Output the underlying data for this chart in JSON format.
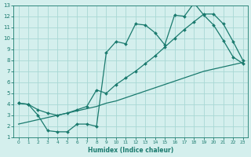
{
  "xlabel": "Humidex (Indice chaleur)",
  "bg_color": "#d4efed",
  "grid_color": "#a8d8d4",
  "line_color": "#1a7a6e",
  "xlim": [
    -0.5,
    23.5
  ],
  "ylim": [
    1,
    13
  ],
  "xticks": [
    0,
    1,
    2,
    3,
    4,
    5,
    6,
    7,
    8,
    9,
    10,
    11,
    12,
    13,
    14,
    15,
    16,
    17,
    18,
    19,
    20,
    21,
    22,
    23
  ],
  "yticks": [
    1,
    2,
    3,
    4,
    5,
    6,
    7,
    8,
    9,
    10,
    11,
    12,
    13
  ],
  "line1_x": [
    0,
    1,
    2,
    3,
    4,
    5,
    6,
    7,
    8,
    9,
    10,
    11,
    12,
    13,
    14,
    15,
    16,
    17,
    18,
    19,
    20,
    21,
    22,
    23
  ],
  "line1_y": [
    4.1,
    4.0,
    3.0,
    1.6,
    1.5,
    1.5,
    2.2,
    2.2,
    2.0,
    8.7,
    9.7,
    9.5,
    11.3,
    11.2,
    10.5,
    9.4,
    12.1,
    12.0,
    13.2,
    12.1,
    11.2,
    9.8,
    8.3,
    7.7
  ],
  "line2_x": [
    0,
    1,
    2,
    3,
    4,
    5,
    6,
    7,
    8,
    9,
    10,
    11,
    12,
    13,
    14,
    15,
    16,
    17,
    18,
    19,
    20,
    21,
    22,
    23
  ],
  "line2_y": [
    4.1,
    4.0,
    3.5,
    3.2,
    3.0,
    3.2,
    3.5,
    3.8,
    5.3,
    5.0,
    5.8,
    6.4,
    7.0,
    7.7,
    8.4,
    9.2,
    10.0,
    10.8,
    11.5,
    12.2,
    12.2,
    11.3,
    9.7,
    8.0
  ],
  "line3_x": [
    0,
    1,
    2,
    3,
    4,
    5,
    6,
    7,
    8,
    9,
    10,
    11,
    12,
    13,
    14,
    15,
    16,
    17,
    18,
    19,
    20,
    21,
    22,
    23
  ],
  "line3_y": [
    2.2,
    2.4,
    2.6,
    2.8,
    3.0,
    3.2,
    3.4,
    3.6,
    3.8,
    4.1,
    4.3,
    4.6,
    4.9,
    5.2,
    5.5,
    5.8,
    6.1,
    6.4,
    6.7,
    7.0,
    7.2,
    7.4,
    7.6,
    7.8
  ]
}
